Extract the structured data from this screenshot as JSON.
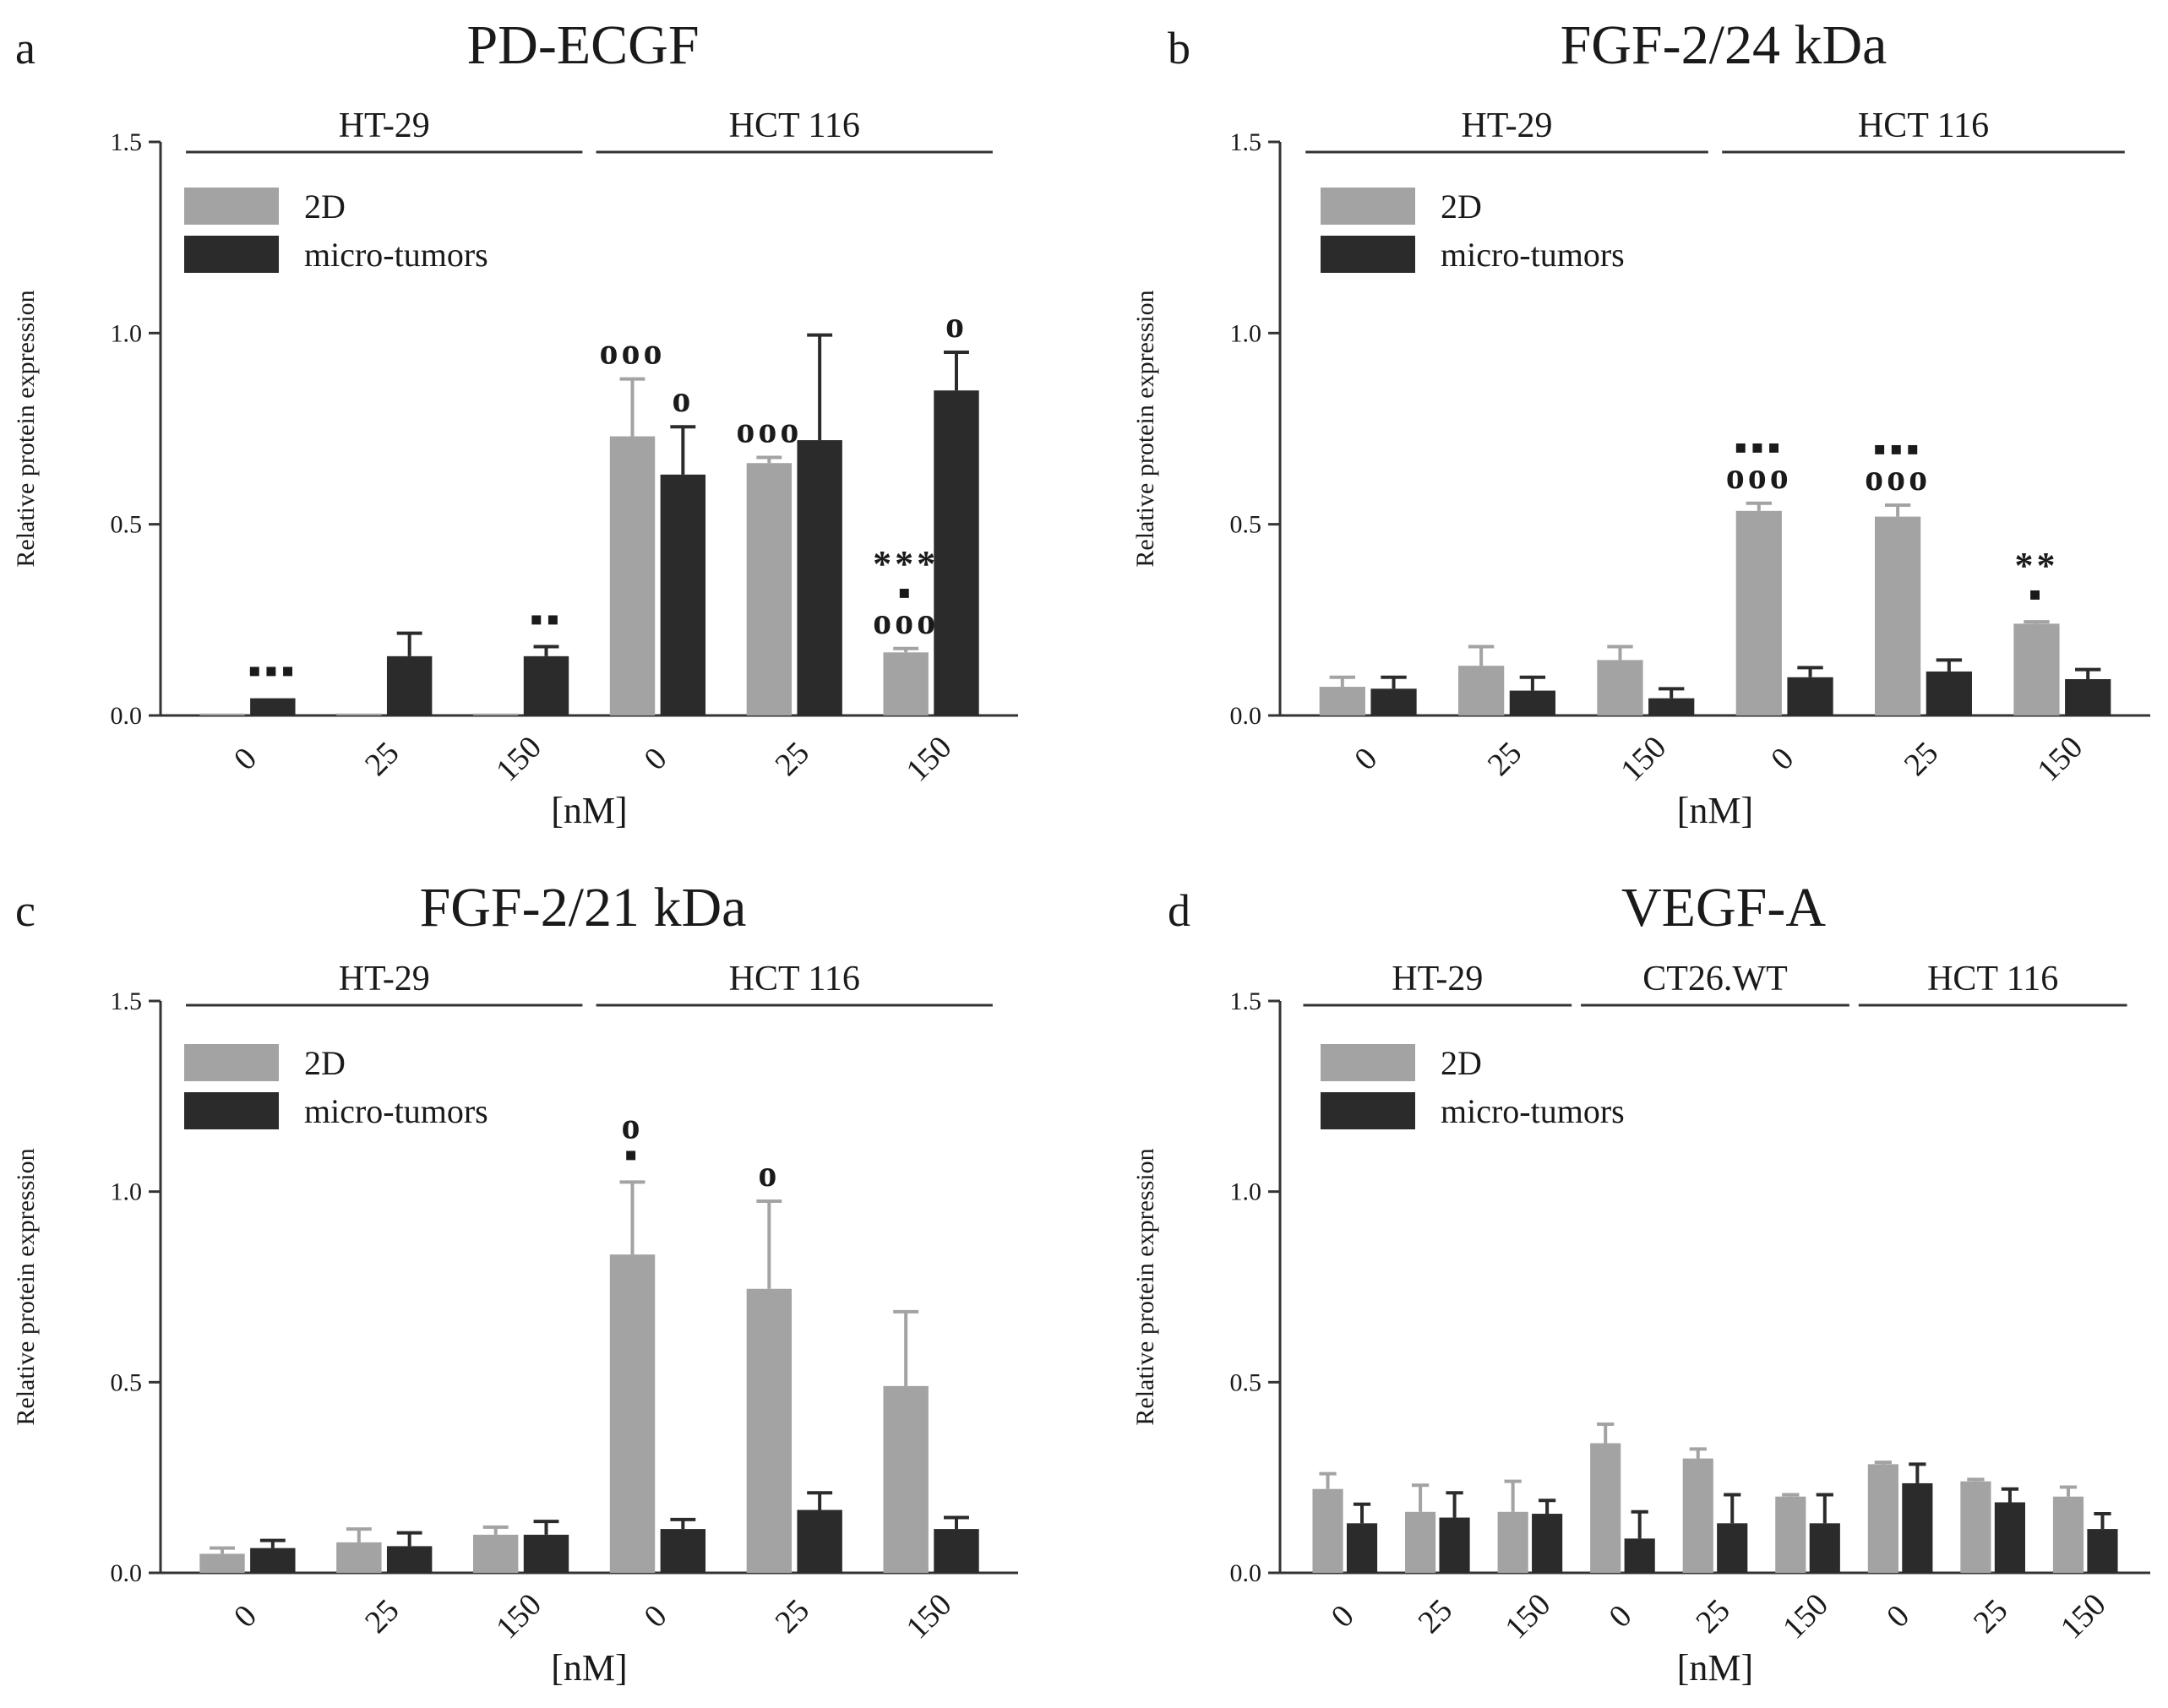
{
  "colors": {
    "twoD": "#a3a3a3",
    "micro": "#2b2b2b",
    "axis": "#333333"
  },
  "chart_data": [
    {
      "type": "bar",
      "panel": "a",
      "title": "PD-ECGF",
      "xlabel": "[nM]",
      "ylabel": "Relative protein expression",
      "ylim": [
        0,
        1.5
      ],
      "yticks": [
        "0.0",
        "0.5",
        "1.0",
        "1.5"
      ],
      "legend": [
        "2D",
        "micro-tumors"
      ],
      "groups": [
        {
          "name": "HT-29",
          "categories": 3
        },
        {
          "name": "HCT 116",
          "categories": 3
        }
      ],
      "categories": [
        "0",
        "25",
        "150",
        "0",
        "25",
        "150"
      ],
      "series": [
        {
          "name": "2D",
          "values": [
            0.005,
            0.005,
            0.005,
            0.73,
            0.66,
            0.165
          ],
          "errors": [
            0,
            0,
            0,
            0.15,
            0.015,
            0.01
          ]
        },
        {
          "name": "micro-tumors",
          "values": [
            0.045,
            0.155,
            0.155,
            0.63,
            0.72,
            0.85
          ],
          "errors": [
            0,
            0.06,
            0.025,
            0.125,
            0.275,
            0.1
          ]
        }
      ],
      "annotations": [
        {
          "category": 0,
          "series": 1,
          "lines": [
            "▪▪▪"
          ]
        },
        {
          "category": 2,
          "series": 1,
          "lines": [
            "▪▪"
          ]
        },
        {
          "category": 3,
          "series": 0,
          "lines": [
            "ooo"
          ]
        },
        {
          "category": 3,
          "series": 1,
          "lines": [
            "o"
          ]
        },
        {
          "category": 4,
          "series": 0,
          "lines": [
            "ooo"
          ]
        },
        {
          "category": 5,
          "series": 0,
          "lines": [
            "***",
            "▪",
            "ooo"
          ]
        },
        {
          "category": 5,
          "series": 1,
          "lines": [
            "o"
          ]
        }
      ]
    },
    {
      "type": "bar",
      "panel": "b",
      "title": "FGF-2/24 kDa",
      "xlabel": "[nM]",
      "ylabel": "Relative protein expression",
      "ylim": [
        0,
        1.5
      ],
      "yticks": [
        "0.0",
        "0.5",
        "1.0",
        "1.5"
      ],
      "legend": [
        "2D",
        "micro-tumors"
      ],
      "groups": [
        {
          "name": "HT-29",
          "categories": 3
        },
        {
          "name": "HCT 116",
          "categories": 3
        }
      ],
      "categories": [
        "0",
        "25",
        "150",
        "0",
        "25",
        "150"
      ],
      "series": [
        {
          "name": "2D",
          "values": [
            0.075,
            0.13,
            0.145,
            0.535,
            0.52,
            0.24
          ],
          "errors": [
            0.025,
            0.05,
            0.035,
            0.02,
            0.03,
            0.005
          ]
        },
        {
          "name": "micro-tumors",
          "values": [
            0.07,
            0.065,
            0.045,
            0.1,
            0.115,
            0.095
          ],
          "errors": [
            0.03,
            0.035,
            0.025,
            0.025,
            0.03,
            0.025
          ]
        }
      ],
      "annotations": [
        {
          "category": 3,
          "series": 0,
          "lines": [
            "▪▪▪",
            "ooo"
          ]
        },
        {
          "category": 4,
          "series": 0,
          "lines": [
            "▪▪▪",
            "ooo"
          ]
        },
        {
          "category": 5,
          "series": 0,
          "lines": [
            "**",
            "▪"
          ]
        }
      ]
    },
    {
      "type": "bar",
      "panel": "c",
      "title": "FGF-2/21 kDa",
      "xlabel": "[nM]",
      "ylabel": "Relative protein expression",
      "ylim": [
        0,
        1.5
      ],
      "yticks": [
        "0.0",
        "0.5",
        "1.0",
        "1.5"
      ],
      "legend": [
        "2D",
        "micro-tumors"
      ],
      "groups": [
        {
          "name": "HT-29",
          "categories": 3
        },
        {
          "name": "HCT 116",
          "categories": 3
        }
      ],
      "categories": [
        "0",
        "25",
        "150",
        "0",
        "25",
        "150"
      ],
      "series": [
        {
          "name": "2D",
          "values": [
            0.05,
            0.08,
            0.1,
            0.835,
            0.745,
            0.49
          ],
          "errors": [
            0.015,
            0.035,
            0.02,
            0.19,
            0.23,
            0.195
          ]
        },
        {
          "name": "micro-tumors",
          "values": [
            0.065,
            0.07,
            0.1,
            0.115,
            0.165,
            0.115
          ],
          "errors": [
            0.02,
            0.035,
            0.035,
            0.025,
            0.045,
            0.03
          ]
        }
      ],
      "annotations": [
        {
          "category": 3,
          "series": 0,
          "lines": [
            "o",
            "▪"
          ]
        },
        {
          "category": 4,
          "series": 0,
          "lines": [
            "o"
          ]
        }
      ]
    },
    {
      "type": "bar",
      "panel": "d",
      "title": "VEGF-A",
      "xlabel": "[nM]",
      "ylabel": "Relative protein expression",
      "ylim": [
        0,
        1.5
      ],
      "yticks": [
        "0.0",
        "0.5",
        "1.0",
        "1.5"
      ],
      "legend": [
        "2D",
        "micro-tumors"
      ],
      "groups": [
        {
          "name": "HT-29",
          "categories": 3
        },
        {
          "name": "CT26.WT",
          "categories": 3
        },
        {
          "name": "HCT 116",
          "categories": 3
        }
      ],
      "categories": [
        "0",
        "25",
        "150",
        "0",
        "25",
        "150",
        "0",
        "25",
        "150"
      ],
      "series": [
        {
          "name": "2D",
          "values": [
            0.22,
            0.16,
            0.16,
            0.34,
            0.3,
            0.2,
            0.285,
            0.24,
            0.2
          ],
          "errors": [
            0.04,
            0.07,
            0.08,
            0.05,
            0.025,
            0.005,
            0.005,
            0.005,
            0.025
          ]
        },
        {
          "name": "micro-tumors",
          "values": [
            0.13,
            0.145,
            0.155,
            0.09,
            0.13,
            0.13,
            0.235,
            0.185,
            0.115
          ],
          "errors": [
            0.05,
            0.065,
            0.035,
            0.07,
            0.075,
            0.075,
            0.05,
            0.035,
            0.04
          ]
        }
      ],
      "annotations": []
    }
  ]
}
